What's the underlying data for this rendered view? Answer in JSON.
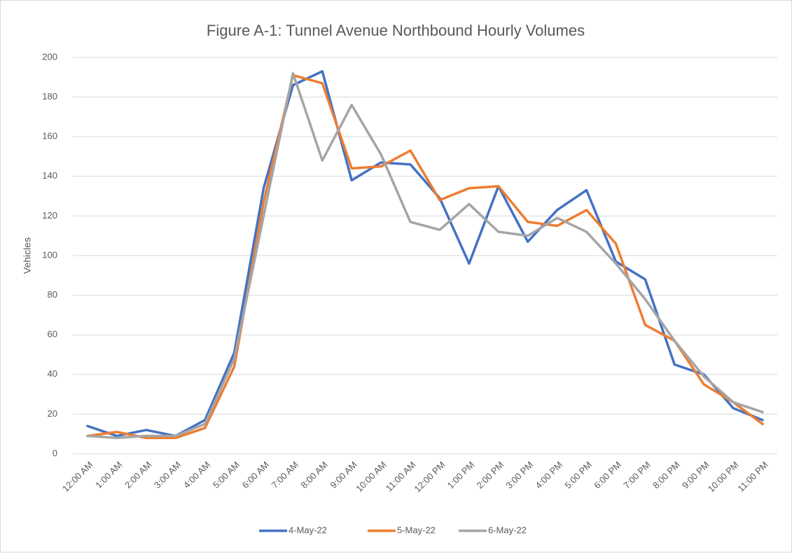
{
  "chart_data": {
    "type": "line",
    "title": "Figure A-1: Tunnel Avenue Northbound Hourly Volumes",
    "y_label": "Vehicles",
    "categories": [
      "12:00 AM",
      "1:00 AM",
      "2:00 AM",
      "3:00 AM",
      "4:00 AM",
      "5:00 AM",
      "6:00 AM",
      "7:00 AM",
      "8:00 AM",
      "9:00 AM",
      "10:00 AM",
      "11:00 AM",
      "12:00 PM",
      "1:00 PM",
      "2:00 PM",
      "3:00 PM",
      "4:00 PM",
      "5:00 PM",
      "6:00 PM",
      "7:00 PM",
      "8:00 PM",
      "9:00 PM",
      "10:00 PM",
      "11:00 PM"
    ],
    "series": [
      {
        "name": "4-May-22",
        "color": "#4472c4",
        "values": [
          14,
          9,
          12,
          9,
          17,
          51,
          134,
          186,
          193,
          138,
          147,
          146,
          129,
          96,
          135,
          107,
          123,
          133,
          97,
          88,
          45,
          40,
          23,
          17
        ]
      },
      {
        "name": "5-May-22",
        "color": "#ed7d31",
        "values": [
          9,
          11,
          8,
          8,
          13,
          44,
          127,
          191,
          187,
          144,
          145,
          153,
          128,
          134,
          135,
          117,
          115,
          123,
          106,
          65,
          57,
          35,
          26,
          15
        ]
      },
      {
        "name": "6-May-22",
        "color": "#a5a5a5",
        "values": [
          9,
          8,
          9,
          9,
          15,
          48,
          120,
          192,
          148,
          176,
          151,
          117,
          113,
          126,
          112,
          110,
          119,
          112,
          96,
          78,
          57,
          39,
          26,
          21
        ]
      }
    ],
    "ylim": [
      0,
      200
    ],
    "yticks": [
      0,
      20,
      40,
      60,
      80,
      100,
      120,
      140,
      160,
      180,
      200
    ],
    "grid": true,
    "legend": "bottom"
  }
}
